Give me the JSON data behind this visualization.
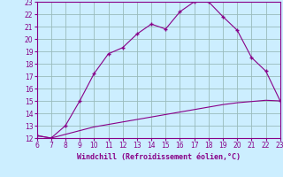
{
  "curve1_x": [
    6,
    7,
    8,
    9,
    10,
    11,
    12,
    13,
    14,
    15,
    16,
    17,
    18,
    19,
    20,
    21,
    22,
    23
  ],
  "curve1_y": [
    12.2,
    12.0,
    13.0,
    15.0,
    17.2,
    18.8,
    19.3,
    20.4,
    21.2,
    20.8,
    22.2,
    23.0,
    23.0,
    21.8,
    20.7,
    18.5,
    17.4,
    15.0
  ],
  "curve2_x": [
    6,
    7,
    8,
    9,
    10,
    11,
    12,
    13,
    14,
    15,
    16,
    17,
    18,
    19,
    20,
    21,
    22,
    23
  ],
  "curve2_y": [
    12.2,
    12.0,
    12.3,
    12.6,
    12.9,
    13.1,
    13.3,
    13.5,
    13.7,
    13.9,
    14.1,
    14.3,
    14.5,
    14.7,
    14.85,
    14.95,
    15.05,
    15.0
  ],
  "line_color": "#880088",
  "bg_color": "#cceeff",
  "grid_color": "#99bbbb",
  "xlabel": "Windchill (Refroidissement éolien,°C)",
  "xlim": [
    6,
    23
  ],
  "ylim": [
    12,
    23
  ],
  "xticks": [
    6,
    7,
    8,
    9,
    10,
    11,
    12,
    13,
    14,
    15,
    16,
    17,
    18,
    19,
    20,
    21,
    22,
    23
  ],
  "yticks": [
    12,
    13,
    14,
    15,
    16,
    17,
    18,
    19,
    20,
    21,
    22,
    23
  ],
  "xlabel_color": "#880088",
  "tick_color": "#880088",
  "tick_fontsize": 5.5,
  "xlabel_fontsize": 6.0,
  "marker": "+"
}
